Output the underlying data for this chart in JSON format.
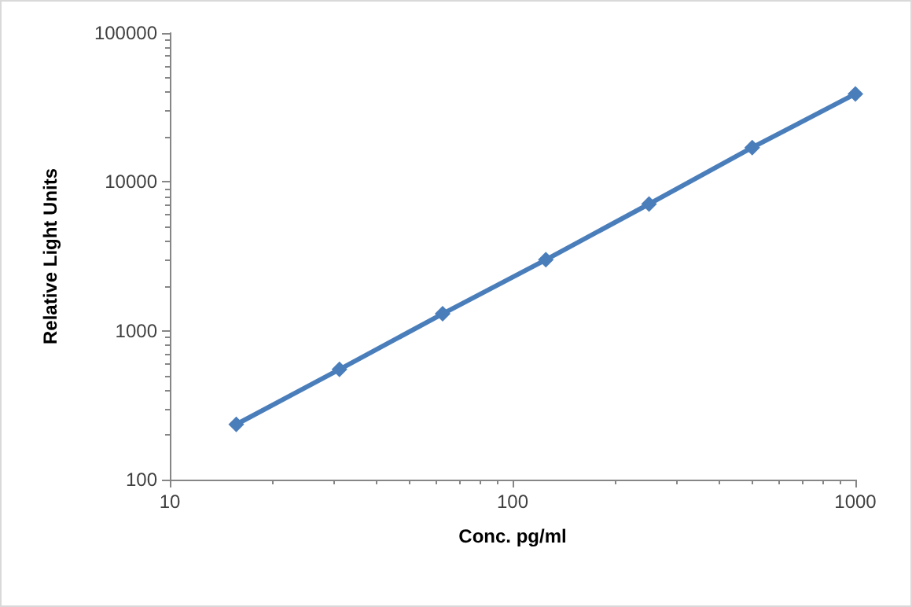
{
  "chart_data": {
    "type": "line",
    "xlabel": "Conc. pg/ml",
    "ylabel": "Relative Light Units",
    "x": [
      15.625,
      31.25,
      62.5,
      125,
      250,
      500,
      1000
    ],
    "series": [
      {
        "color": "#4a7ebb",
        "values": [
          235,
          550,
          1300,
          3000,
          7100,
          17000,
          39000
        ]
      }
    ],
    "log": "xy",
    "xlim": [
      10,
      1000
    ],
    "ylim": [
      100,
      100000
    ],
    "xticks": [
      10,
      100,
      1000
    ],
    "yticks": [
      100,
      1000,
      10000,
      100000
    ],
    "marker": "diamond",
    "line_style": "solid"
  }
}
